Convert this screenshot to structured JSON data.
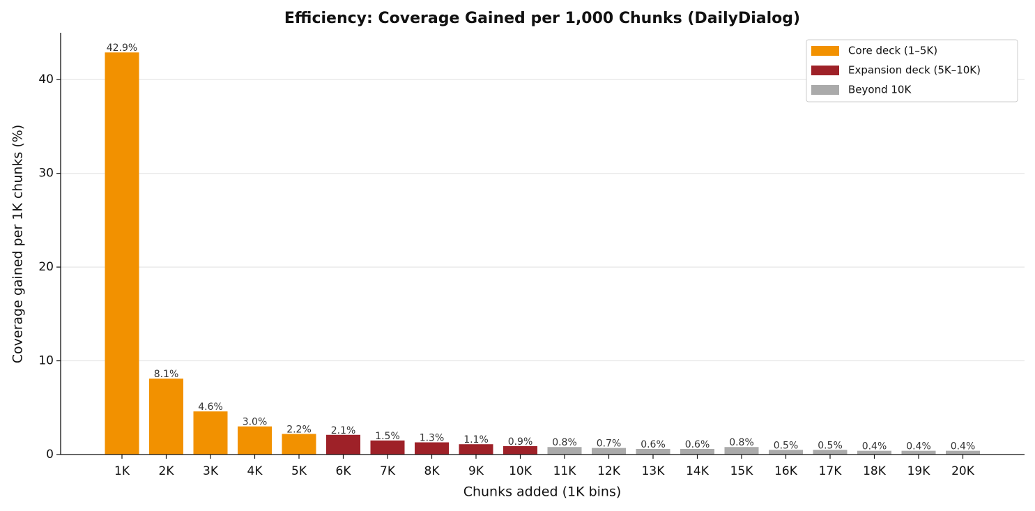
{
  "chart_data": {
    "type": "bar",
    "title": "Efficiency: Coverage Gained per 1,000 Chunks (DailyDialog)",
    "x_label": "Chunks added (1K bins)",
    "y_label": "Coverage gained per 1K chunks (%)",
    "categories": [
      "1K",
      "2K",
      "3K",
      "4K",
      "5K",
      "6K",
      "7K",
      "8K",
      "9K",
      "10K",
      "11K",
      "12K",
      "13K",
      "14K",
      "15K",
      "16K",
      "17K",
      "18K",
      "19K",
      "20K"
    ],
    "series": [
      {
        "name": "Core deck (1–5K)",
        "color": "#f29100",
        "values": [
          42.9,
          8.1,
          4.6,
          3.0,
          2.2,
          null,
          null,
          null,
          null,
          null,
          null,
          null,
          null,
          null,
          null,
          null,
          null,
          null,
          null,
          null
        ],
        "value_labels": [
          "42.9%",
          "8.1%",
          "4.6%",
          "3.0%",
          "2.2%",
          null,
          null,
          null,
          null,
          null,
          null,
          null,
          null,
          null,
          null,
          null,
          null,
          null,
          null,
          null
        ]
      },
      {
        "name": "Expansion deck (5K–10K)",
        "color": "#9e2128",
        "values": [
          null,
          null,
          null,
          null,
          null,
          2.1,
          1.5,
          1.3,
          1.1,
          0.9,
          null,
          null,
          null,
          null,
          null,
          null,
          null,
          null,
          null,
          null
        ],
        "value_labels": [
          null,
          null,
          null,
          null,
          null,
          "2.1%",
          "1.5%",
          "1.3%",
          "1.1%",
          "0.9%",
          null,
          null,
          null,
          null,
          null,
          null,
          null,
          null,
          null,
          null
        ]
      },
      {
        "name": "Beyond 10K",
        "color": "#aaaaaa",
        "values": [
          null,
          null,
          null,
          null,
          null,
          null,
          null,
          null,
          null,
          null,
          0.8,
          0.7,
          0.6,
          0.6,
          0.8,
          0.5,
          0.5,
          0.4,
          0.4,
          0.4
        ],
        "value_labels": [
          null,
          null,
          null,
          null,
          null,
          null,
          null,
          null,
          null,
          null,
          "0.8%",
          "0.7%",
          "0.6%",
          "0.6%",
          "0.8%",
          "0.5%",
          "0.5%",
          "0.4%",
          "0.4%",
          "0.4%"
        ]
      }
    ],
    "ylim": [
      0,
      45
    ],
    "yticks": [
      0,
      10,
      20,
      30,
      40
    ],
    "grid": true,
    "legend": "upper right"
  }
}
